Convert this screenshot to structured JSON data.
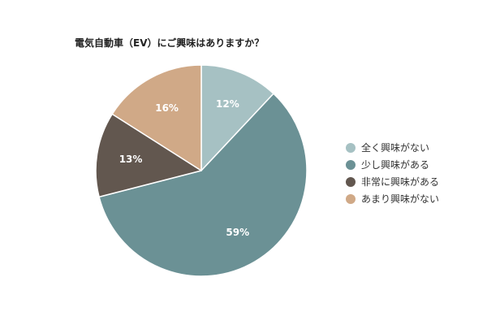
{
  "chart_data": {
    "type": "pie",
    "title": "電気自動車（EV）にご興味はありますか？",
    "categories": [
      "全く興味がない",
      "少し興味がある",
      "非常に興味がある",
      "あまり興味がない"
    ],
    "values": [
      12,
      59,
      13,
      16
    ],
    "value_labels": [
      "12%",
      "59%",
      "13%",
      "16%"
    ],
    "unit": "%",
    "colors": [
      "#A6C1C3",
      "#6B9195",
      "#62574F",
      "#D0A987"
    ],
    "legend_position": "right",
    "start_angle": "12 o'clock",
    "direction": "clockwise"
  }
}
